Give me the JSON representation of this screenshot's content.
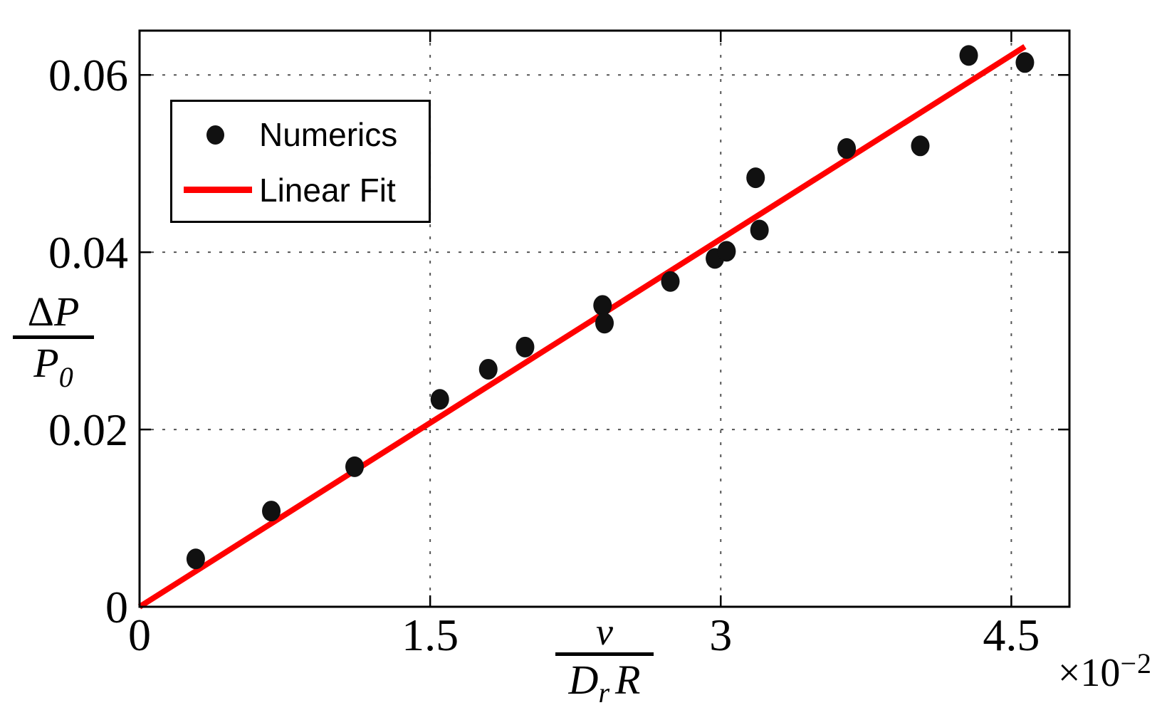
{
  "figure": {
    "background": "#ffffff",
    "frame_color": "#000000",
    "grid_color": "#555555"
  },
  "chart_data": {
    "type": "scatter",
    "title": "",
    "xlabel": {
      "numerator": "v",
      "den_base": "D",
      "den_sub": "r",
      "den_second": "R"
    },
    "ylabel": {
      "num_delta": "Δ",
      "num_var": "P",
      "den_base": "P",
      "den_sub": "0"
    },
    "x_offset_text": {
      "base": "×10",
      "exponent": "−2"
    },
    "x_unit_note": "x values are in units of 1e-2",
    "xlim": [
      0,
      4.8
    ],
    "ylim": [
      0,
      0.065
    ],
    "grid": true,
    "x_ticks": [
      {
        "value": 0,
        "label": "0"
      },
      {
        "value": 1.5,
        "label": "1.5"
      },
      {
        "value": 3,
        "label": "3"
      },
      {
        "value": 4.5,
        "label": "4.5"
      }
    ],
    "y_ticks": [
      {
        "value": 0,
        "label": "0"
      },
      {
        "value": 0.02,
        "label": "0.02"
      },
      {
        "value": 0.04,
        "label": "0.04"
      },
      {
        "value": 0.06,
        "label": "0.06"
      }
    ],
    "legend": {
      "position": "upper-left",
      "entries": [
        {
          "label": "Numerics",
          "type": "marker",
          "color": "#111111"
        },
        {
          "label": "Linear Fit",
          "type": "line",
          "color": "#ff0000"
        }
      ]
    },
    "series": [
      {
        "name": "Numerics",
        "type": "scatter",
        "marker": "dot",
        "color": "#111111",
        "x": [
          0.29,
          0.68,
          1.11,
          1.55,
          1.8,
          1.99,
          2.39,
          2.4,
          2.74,
          2.97,
          3.03,
          3.2,
          3.18,
          3.65,
          4.03,
          4.28,
          4.57
        ],
        "y": [
          0.0054,
          0.0108,
          0.0158,
          0.0234,
          0.0268,
          0.0293,
          0.034,
          0.032,
          0.0367,
          0.0393,
          0.0401,
          0.0425,
          0.0484,
          0.0517,
          0.052,
          0.0622,
          0.0614
        ]
      },
      {
        "name": "Linear Fit",
        "type": "line",
        "color": "#ff0000",
        "x": [
          0,
          4.57
        ],
        "y": [
          0,
          0.0632
        ],
        "slope_per_x_unit": 0.01383
      }
    ]
  }
}
